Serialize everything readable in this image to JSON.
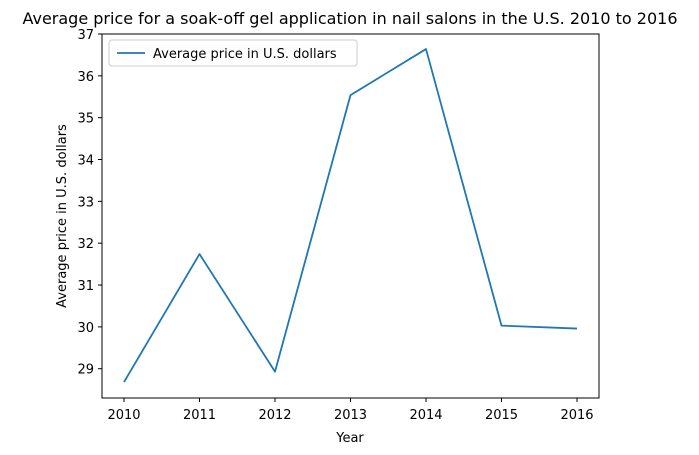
{
  "chart_data": {
    "type": "line",
    "title": "Average price for a soak-off gel application in nail salons in the U.S. 2010 to 2016",
    "xlabel": "Year",
    "ylabel": "Average price in U.S. dollars",
    "x": [
      "2010",
      "2011",
      "2012",
      "2013",
      "2014",
      "2015",
      "2016"
    ],
    "series": [
      {
        "name": "Average price in U.S. dollars",
        "values": [
          28.68,
          31.74,
          28.93,
          35.54,
          36.64,
          30.03,
          29.96
        ],
        "color": "#1f77b4"
      }
    ],
    "yticks": [
      "29",
      "30",
      "31",
      "32",
      "33",
      "34",
      "35",
      "36",
      "37"
    ],
    "ylim": [
      28.3,
      37.0
    ],
    "grid": false,
    "legend": "top-left"
  }
}
